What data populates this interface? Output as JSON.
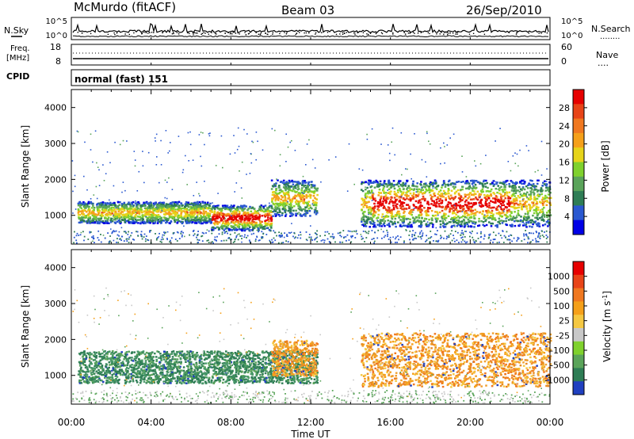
{
  "header": {
    "station": "McMurdo (fitACF)",
    "beam": "Beam 03",
    "date": "26/Sep/2010"
  },
  "noise_panel": {
    "left_label": "N.Sky",
    "left_ticks": [
      "10^5",
      "10^0"
    ],
    "right_ticks": [
      "10^5",
      "10^0"
    ],
    "right_label": "N.Search",
    "right_label_dots": "........"
  },
  "freq_panel": {
    "left_label_1": "Freq.",
    "left_label_2": "[MHz]",
    "left_ticks": [
      "18",
      "8"
    ],
    "right_ticks": [
      "60",
      "0"
    ],
    "right_label": "Nave",
    "right_label_dots": "...."
  },
  "cpid_panel": {
    "label": "CPID",
    "value": "normal (fast) 151"
  },
  "chart_data": [
    {
      "type": "heatmap",
      "parameter": "power",
      "ylabel": "Slant Range [km]",
      "ylim": [
        200,
        4500
      ],
      "yticks": [
        1000,
        2000,
        3000,
        4000
      ],
      "xlim_hours": [
        0,
        24
      ],
      "colorbar": {
        "label": "Power [dB]",
        "ticks": [
          "28",
          "24",
          "20",
          "16",
          "12",
          "8",
          "4"
        ],
        "colors": [
          "#0000e6",
          "#2a58d0",
          "#2e7d55",
          "#5aa45a",
          "#7fd12d",
          "#e6d41a",
          "#f5a01a",
          "#f07820",
          "#e84418",
          "#e60000"
        ]
      },
      "echo_bands": [
        {
          "start_hour": 0.3,
          "end_hour": 7.0,
          "range_low_km": 800,
          "range_high_km": 1400
        },
        {
          "start_hour": 7.0,
          "end_hour": 10.0,
          "range_low_km": 600,
          "range_high_km": 1300
        },
        {
          "start_hour": 10.0,
          "end_hour": 12.3,
          "range_low_km": 1000,
          "range_high_km": 2000
        },
        {
          "start_hour": 14.5,
          "end_hour": 24.0,
          "range_low_km": 700,
          "range_high_km": 2000
        }
      ]
    },
    {
      "type": "heatmap",
      "parameter": "velocity",
      "ylabel": "Slant Range [km]",
      "ylim": [
        200,
        4500
      ],
      "yticks": [
        1000,
        2000,
        3000,
        4000
      ],
      "xlim_hours": [
        0,
        24
      ],
      "colorbar": {
        "label": "Velocity [m s^-1]",
        "ticks": [
          "1000",
          "500",
          "100",
          "25",
          "-25",
          "-100",
          "-500",
          "-1000"
        ],
        "colors": [
          "#2040c0",
          "#2e7d55",
          "#5aa45a",
          "#7fd12d",
          "#c8c8c8",
          "#f5c842",
          "#f5a01a",
          "#f07820",
          "#e84418",
          "#e60000"
        ]
      },
      "echo_bands": [
        {
          "start_hour": 0.3,
          "end_hour": 12.3,
          "range_low_km": 800,
          "range_high_km": 1700,
          "color": "green"
        },
        {
          "start_hour": 10.0,
          "end_hour": 12.3,
          "range_low_km": 1000,
          "range_high_km": 2000,
          "color": "orange"
        },
        {
          "start_hour": 14.5,
          "end_hour": 24.0,
          "range_low_km": 700,
          "range_high_km": 2200,
          "color": "orange"
        }
      ]
    }
  ],
  "time_axis": {
    "ticks": [
      "00:00",
      "04:00",
      "08:00",
      "12:00",
      "16:00",
      "20:00",
      "00:00"
    ],
    "label": "Time UT"
  },
  "colors": {
    "axis": "#000000"
  }
}
